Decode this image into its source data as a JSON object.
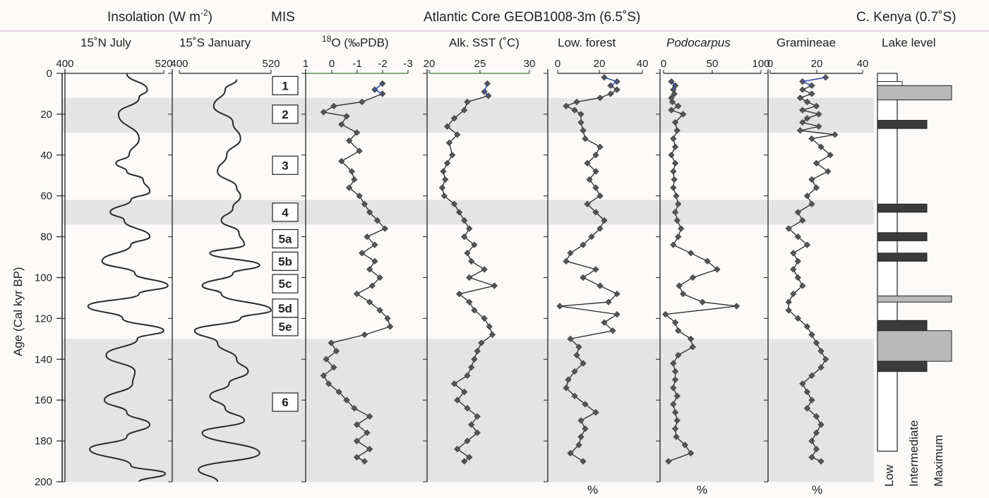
{
  "headers": {
    "insolation": "Insolation (W m",
    "insolation_sup": "-2",
    "insolation_close": ")",
    "mis": "MIS",
    "atlantic": "Atlantic Core GEOB1008-3m (6.5˚S)",
    "kenya": "C. Kenya (0.7˚S)"
  },
  "y_axis": {
    "label": "Age (Cal kyr BP)",
    "ticks": [
      0,
      20,
      40,
      60,
      80,
      100,
      120,
      140,
      160,
      180,
      200
    ],
    "range": [
      0,
      200
    ]
  },
  "glacial_bands": [
    [
      12,
      29
    ],
    [
      62,
      74
    ],
    [
      130,
      200
    ]
  ],
  "colors": {
    "marker": "#555555",
    "band": "#e4e4e4",
    "curve": "#2a2a2a",
    "holocene_blue": "#3a4fb0"
  },
  "panels": [
    {
      "id": "ins_n",
      "title": "15˚N July",
      "xmin_label": "400",
      "xmax_label": "520",
      "range": [
        400,
        520
      ],
      "type": "line"
    },
    {
      "id": "ins_s",
      "title": "15˚S January",
      "xmin_label": "400",
      "xmax_label": "520",
      "range": [
        400,
        520
      ],
      "type": "line"
    },
    {
      "id": "d18o",
      "title_sup": "18",
      "title": "O (‰PDB)",
      "tick_labels": [
        "1",
        "0",
        "-1",
        "-2",
        "-3"
      ],
      "range": [
        1,
        -3
      ],
      "type": "line-marker"
    },
    {
      "id": "sst",
      "title": "Alk. SST (˚C)",
      "tick_labels": [
        "20",
        "25",
        "30"
      ],
      "range": [
        20,
        30
      ],
      "type": "line-marker"
    },
    {
      "id": "lowforest",
      "title": "Low. forest",
      "tick_labels": [
        "0",
        "20",
        "40"
      ],
      "range": [
        0,
        40
      ],
      "unit": "%",
      "type": "line-marker"
    },
    {
      "id": "podo",
      "title": "Podocarpus",
      "tick_labels": [
        "0",
        "50",
        "100"
      ],
      "range": [
        0,
        100
      ],
      "unit": "%",
      "type": "line-marker"
    },
    {
      "id": "gram",
      "title": "Gramineae",
      "tick_labels": [
        "0",
        "20",
        "40"
      ],
      "range": [
        0,
        40
      ],
      "unit": "%",
      "type": "line-marker"
    }
  ],
  "mis_stages": [
    {
      "label": "1",
      "age": 6
    },
    {
      "label": "2",
      "age": 20
    },
    {
      "label": "3",
      "age": 45
    },
    {
      "label": "4",
      "age": 68
    },
    {
      "label": "5a",
      "age": 81
    },
    {
      "label": "5b",
      "age": 92
    },
    {
      "label": "5c",
      "age": 103
    },
    {
      "label": "5d",
      "age": 115
    },
    {
      "label": "5e",
      "age": 124
    },
    {
      "label": "6",
      "age": 161
    }
  ],
  "lake_level": {
    "title": "Lake level",
    "axis_labels": [
      "Low",
      "Intermediate",
      "Maximum"
    ],
    "baseline_box": [
      0,
      185
    ],
    "bars": [
      {
        "from": 4,
        "to": 6,
        "level": "low"
      },
      {
        "from": 6,
        "to": 13,
        "level": "maximum"
      },
      {
        "from": 23,
        "to": 27,
        "level": "intermediate"
      },
      {
        "from": 64,
        "to": 68,
        "level": "intermediate"
      },
      {
        "from": 78,
        "to": 82,
        "level": "intermediate"
      },
      {
        "from": 88,
        "to": 92,
        "level": "intermediate"
      },
      {
        "from": 109,
        "to": 112,
        "level": "maximum"
      },
      {
        "from": 121,
        "to": 126,
        "level": "intermediate"
      },
      {
        "from": 126,
        "to": 141,
        "level": "maximum"
      },
      {
        "from": 141,
        "to": 146,
        "level": "intermediate"
      }
    ]
  },
  "chart_data": [
    {
      "type": "line",
      "title": "15˚N July",
      "xlabel": "Insolation (W m-2)",
      "ylabel": "Age (Cal kyr BP)",
      "xlim": [
        400,
        520
      ],
      "ylim": [
        0,
        200
      ],
      "y": [
        0,
        8,
        12,
        20,
        32,
        40,
        44,
        48,
        52,
        58,
        62,
        68,
        72,
        80,
        84,
        92,
        98,
        104,
        108,
        114,
        120,
        126,
        130,
        138,
        146,
        152,
        160,
        166,
        172,
        178,
        184,
        192,
        196,
        200
      ],
      "x": [
        475,
        500,
        490,
        465,
        490,
        478,
        462,
        475,
        495,
        503,
        480,
        455,
        472,
        503,
        480,
        445,
        485,
        525,
        490,
        428,
        470,
        520,
        488,
        450,
        485,
        482,
        448,
        475,
        503,
        475,
        430,
        480,
        522,
        490
      ]
    },
    {
      "type": "line",
      "title": "15˚S January",
      "xlabel": "Insolation (W m-2)",
      "ylabel": "Age (Cal kyr BP)",
      "xlim": [
        400,
        520
      ],
      "ylim": [
        0,
        200
      ],
      "y": [
        3,
        8,
        16,
        24,
        32,
        40,
        48,
        56,
        60,
        66,
        72,
        78,
        84,
        88,
        94,
        98,
        104,
        108,
        116,
        120,
        126,
        132,
        140,
        146,
        152,
        158,
        164,
        170,
        176,
        186,
        194,
        200
      ],
      "x": [
        475,
        460,
        445,
        470,
        480,
        462,
        450,
        475,
        480,
        470,
        455,
        478,
        485,
        440,
        505,
        470,
        430,
        455,
        520,
        480,
        420,
        450,
        475,
        490,
        465,
        440,
        460,
        485,
        430,
        505,
        425,
        450
      ]
    },
    {
      "type": "line",
      "title": "18O (‰PDB)",
      "xlim": [
        1,
        -3
      ],
      "ylim": [
        0,
        200
      ],
      "y": [
        5,
        8,
        10,
        14,
        16,
        19,
        21,
        25,
        29,
        33,
        38,
        43,
        48,
        52,
        56,
        60,
        64,
        68,
        72,
        76,
        80,
        84,
        88,
        92,
        96,
        100,
        104,
        108,
        112,
        116,
        120,
        124,
        128,
        132,
        136,
        140,
        144,
        148,
        152,
        156,
        160,
        164,
        168,
        172,
        176,
        180,
        184,
        188,
        190
      ],
      "x": [
        -2.0,
        -1.7,
        -2.0,
        -1.2,
        -0.1,
        0.3,
        -0.6,
        -0.4,
        -1.0,
        -0.7,
        -1.1,
        -0.4,
        -0.8,
        -0.9,
        -0.7,
        -1.1,
        -1.3,
        -1.5,
        -1.8,
        -2.1,
        -1.4,
        -1.7,
        -1.2,
        -1.7,
        -1.5,
        -1.9,
        -1.6,
        -1.0,
        -1.5,
        -1.9,
        -2.2,
        -2.3,
        -1.3,
        0.0,
        -0.2,
        0.2,
        -0.1,
        0.3,
        0.1,
        -0.3,
        -0.6,
        -0.9,
        -1.5,
        -1.0,
        -1.4,
        -1.0,
        -1.5,
        -1.0,
        -1.3
      ]
    },
    {
      "type": "line",
      "title": "Alk. SST (˚C)",
      "xlim": [
        20,
        30
      ],
      "ylim": [
        0,
        200
      ],
      "y": [
        5,
        9,
        11,
        14,
        18,
        22,
        26,
        30,
        34,
        40,
        44,
        48,
        52,
        56,
        60,
        64,
        68,
        72,
        76,
        80,
        84,
        88,
        92,
        96,
        100,
        104,
        108,
        112,
        116,
        120,
        124,
        128,
        132,
        136,
        140,
        144,
        148,
        152,
        156,
        160,
        164,
        168,
        172,
        176,
        180,
        184,
        188,
        190
      ],
      "x": [
        25.8,
        25.5,
        25.9,
        23.8,
        23.5,
        22.5,
        21.8,
        22.8,
        22.0,
        22.3,
        21.8,
        21.4,
        21.6,
        21.3,
        21.5,
        22.5,
        23.0,
        23.5,
        24.0,
        23.5,
        24.5,
        23.8,
        24.2,
        25.5,
        24.0,
        26.5,
        23.0,
        24.0,
        24.5,
        25.5,
        26.0,
        26.3,
        25.2,
        24.8,
        24.5,
        24.2,
        23.8,
        22.5,
        23.5,
        22.8,
        23.8,
        24.8,
        24.2,
        24.8,
        23.8,
        22.8,
        24.0,
        23.5
      ]
    },
    {
      "type": "line",
      "title": "Low. forest",
      "xlabel": "%",
      "xlim": [
        0,
        40
      ],
      "ylim": [
        0,
        200
      ],
      "y": [
        2,
        4,
        6,
        8,
        10,
        12,
        14,
        16,
        18,
        20,
        24,
        28,
        32,
        36,
        40,
        44,
        48,
        52,
        56,
        60,
        64,
        68,
        72,
        76,
        80,
        84,
        88,
        92,
        96,
        100,
        104,
        108,
        112,
        114,
        118,
        122,
        126,
        130,
        134,
        138,
        142,
        146,
        150,
        154,
        158,
        162,
        166,
        170,
        174,
        178,
        182,
        186,
        190
      ],
      "x": [
        22,
        28,
        25,
        28,
        25,
        20,
        9,
        4,
        8,
        11,
        11,
        12,
        13,
        20,
        18,
        14,
        18,
        15,
        18,
        20,
        14,
        18,
        22,
        20,
        16,
        12,
        6,
        4,
        18,
        12,
        20,
        28,
        24,
        1,
        28,
        22,
        26,
        6,
        10,
        9,
        12,
        8,
        5,
        4,
        8,
        13,
        18,
        11,
        13,
        11,
        10,
        6,
        12
      ]
    },
    {
      "type": "line",
      "title": "Podocarpus",
      "xlabel": "%",
      "xlim": [
        0,
        100
      ],
      "ylim": [
        0,
        200
      ],
      "y": [
        4,
        6,
        8,
        10,
        12,
        14,
        16,
        18,
        20,
        24,
        28,
        32,
        36,
        40,
        44,
        48,
        52,
        56,
        60,
        64,
        68,
        72,
        76,
        80,
        84,
        88,
        92,
        96,
        100,
        104,
        108,
        112,
        114,
        118,
        122,
        126,
        130,
        134,
        138,
        142,
        146,
        150,
        154,
        158,
        162,
        166,
        170,
        174,
        178,
        182,
        186,
        190
      ],
      "x": [
        8,
        12,
        10,
        11,
        8,
        9,
        15,
        8,
        20,
        12,
        14,
        10,
        12,
        8,
        12,
        10,
        11,
        10,
        13,
        15,
        12,
        14,
        18,
        15,
        10,
        28,
        45,
        55,
        30,
        16,
        20,
        40,
        75,
        2,
        12,
        15,
        28,
        30,
        15,
        10,
        12,
        12,
        10,
        14,
        10,
        12,
        14,
        12,
        13,
        22,
        28,
        5
      ]
    },
    {
      "type": "line",
      "title": "Gramineae",
      "xlabel": "%",
      "xlim": [
        0,
        40
      ],
      "ylim": [
        0,
        200
      ],
      "y": [
        2,
        4,
        6,
        8,
        10,
        12,
        14,
        16,
        18,
        20,
        22,
        24,
        26,
        28,
        30,
        32,
        36,
        40,
        44,
        48,
        52,
        56,
        60,
        64,
        68,
        72,
        76,
        80,
        84,
        88,
        92,
        96,
        100,
        104,
        108,
        112,
        116,
        120,
        124,
        128,
        132,
        136,
        140,
        144,
        148,
        152,
        156,
        160,
        164,
        168,
        172,
        176,
        180,
        184,
        188,
        190
      ],
      "x": [
        24,
        14,
        18,
        14,
        18,
        13,
        16,
        20,
        14,
        21,
        16,
        14,
        21,
        13,
        28,
        18,
        22,
        26,
        20,
        25,
        18,
        20,
        16,
        18,
        12,
        14,
        8,
        12,
        16,
        10,
        12,
        10,
        12,
        14,
        10,
        8,
        8,
        12,
        16,
        18,
        20,
        22,
        24,
        22,
        18,
        14,
        16,
        18,
        16,
        20,
        22,
        20,
        18,
        20,
        18,
        22
      ]
    },
    {
      "type": "bar",
      "title": "Lake level",
      "ylabel": "Age (Cal kyr BP)",
      "categories": [
        "Low",
        "Intermediate",
        "Maximum"
      ],
      "ylim": [
        0,
        200
      ],
      "intervals": [
        {
          "from": 4,
          "to": 6,
          "level": "Low"
        },
        {
          "from": 6,
          "to": 13,
          "level": "Maximum"
        },
        {
          "from": 23,
          "to": 27,
          "level": "Intermediate"
        },
        {
          "from": 64,
          "to": 68,
          "level": "Intermediate"
        },
        {
          "from": 78,
          "to": 82,
          "level": "Intermediate"
        },
        {
          "from": 88,
          "to": 92,
          "level": "Intermediate"
        },
        {
          "from": 109,
          "to": 112,
          "level": "Maximum"
        },
        {
          "from": 121,
          "to": 126,
          "level": "Intermediate"
        },
        {
          "from": 126,
          "to": 141,
          "level": "Maximum"
        },
        {
          "from": 141,
          "to": 146,
          "level": "Intermediate"
        }
      ]
    }
  ]
}
